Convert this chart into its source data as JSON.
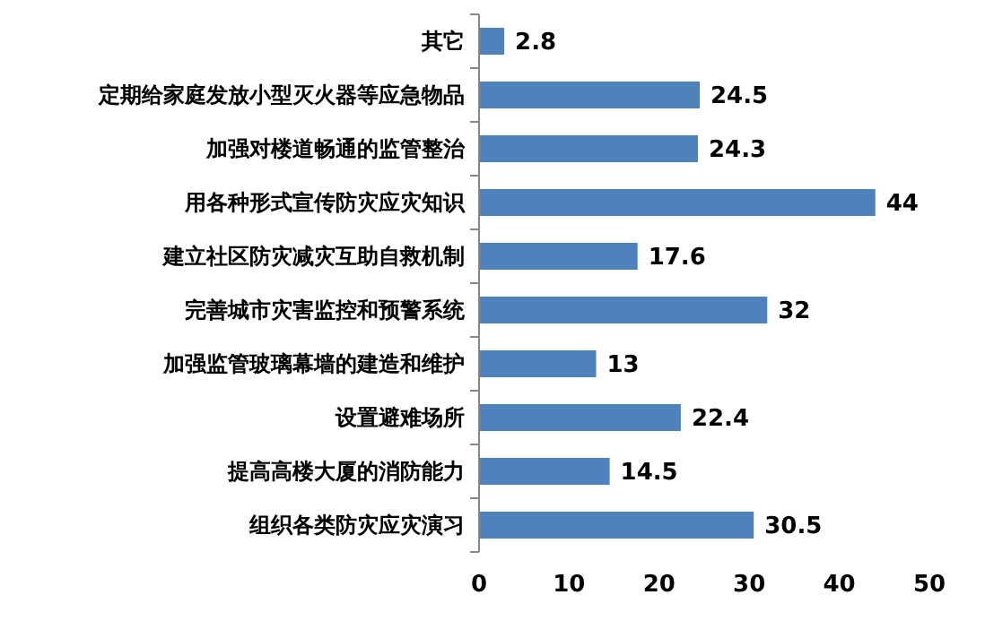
{
  "chart_data": {
    "type": "bar",
    "orientation": "horizontal",
    "categories": [
      "其它",
      "定期给家庭发放小型灭火器等应急物品",
      "加强对楼道畅通的监管整治",
      "用各种形式宣传防灾应灾知识",
      "建立社区防灾减灾互助自救机制",
      "完善城市灾害监控和预警系统",
      "加强监管玻璃幕墙的建造和维护",
      "设置避难场所",
      "提高高楼大厦的消防能力",
      "组织各类防灾应灾演习"
    ],
    "values": [
      2.8,
      24.5,
      24.3,
      44,
      17.6,
      32,
      13,
      22.4,
      14.5,
      30.5
    ],
    "color": "#4f81bd",
    "xlim": [
      0,
      50
    ],
    "xticks": [
      0,
      10,
      20,
      30,
      40,
      50
    ],
    "data_labels": true
  }
}
